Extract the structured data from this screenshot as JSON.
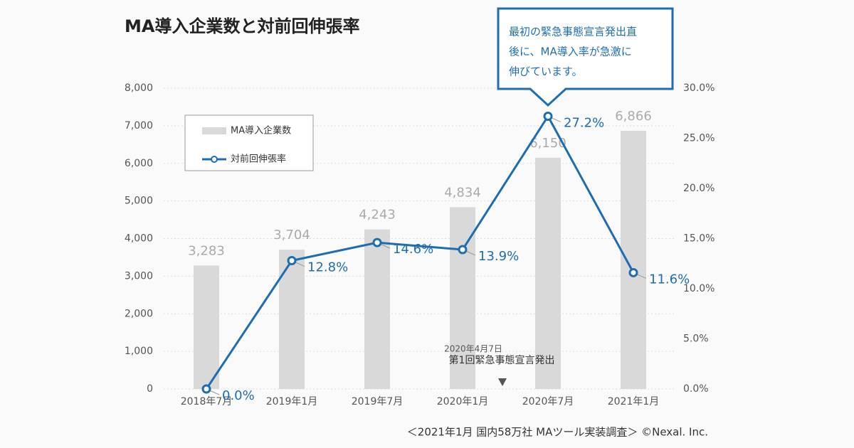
{
  "chart_data": {
    "type": "bar",
    "title": "MA導入企業数と対前回伸張率",
    "categories": [
      "2018年7月",
      "2019年1月",
      "2019年7月",
      "2020年1月",
      "2020年7月",
      "2021年1月"
    ],
    "series": [
      {
        "name": "MA導入企業数",
        "type": "bar",
        "color": "#d9d9d9",
        "values": [
          3283,
          3704,
          4243,
          4834,
          6150,
          6866
        ],
        "value_labels": [
          "3,283",
          "3,704",
          "4,243",
          "4,834",
          "6,150",
          "6,866"
        ]
      },
      {
        "name": "対前回伸張率",
        "type": "line",
        "axis": "y2",
        "color": "#1f6db0",
        "values": [
          0.0,
          12.8,
          14.6,
          13.9,
          27.2,
          11.6
        ],
        "value_labels": [
          "0.0%",
          "12.8%",
          "14.6%",
          "13.9%",
          "27.2%",
          "11.6%"
        ]
      }
    ],
    "ylim": [
      0,
      8000
    ],
    "yticks": [
      0,
      {
        "value": 1000,
        "label": "1,000"
      },
      {
        "value": 2000,
        "label": "2,000"
      },
      {
        "value": 3000,
        "label": "3,000"
      },
      {
        "value": 4000,
        "label": "4,000"
      },
      {
        "value": 5000,
        "label": "5,000"
      },
      {
        "value": 6000,
        "label": "6,000"
      },
      {
        "value": 7000,
        "label": "7,000"
      },
      {
        "value": 8000,
        "label": "8,000"
      }
    ],
    "y2lim": [
      0,
      30
    ],
    "y2ticks": [
      {
        "value": 0,
        "label": "0.0%"
      },
      {
        "value": 5,
        "label": "5.0%"
      },
      {
        "value": 10,
        "label": "10.0%"
      },
      {
        "value": 15,
        "label": "15.0%"
      },
      {
        "value": 20,
        "label": "20.0%"
      },
      {
        "value": 25,
        "label": "25.0%"
      },
      {
        "value": 30,
        "label": "30.0%"
      }
    ],
    "grid": true,
    "legend": "upper left",
    "callout": [
      "最初の緊急事態宣言発出直",
      "後に、MA導入率が急激に",
      "伸びています。"
    ],
    "event_date": "2020年4月7日",
    "event_label": "第1回緊急事態宣言発出",
    "source": "＜2021年1月 国内58万社 MAツール実装調査＞ ©Nexal. Inc."
  }
}
